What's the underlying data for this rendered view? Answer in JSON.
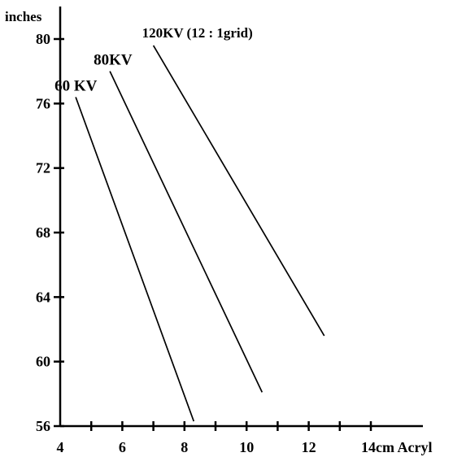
{
  "chart_data": {
    "type": "line",
    "title": "",
    "ylabel": "inches",
    "xlabel": "cm Acryl",
    "xlim": [
      4,
      14
    ],
    "ylim": [
      56,
      80
    ],
    "x_ticks": [
      4,
      6,
      8,
      10,
      12,
      14
    ],
    "x_tick_labels": [
      "4",
      "6",
      "8",
      "10",
      "12",
      "14cm Acryl"
    ],
    "x_minor_ticks": [
      5,
      7,
      9,
      11,
      13
    ],
    "y_ticks": [
      56,
      60,
      64,
      68,
      72,
      76,
      80
    ],
    "y_tick_labels": [
      "56",
      "60",
      "64",
      "68",
      "72",
      "76",
      "80"
    ],
    "grid": false,
    "series": [
      {
        "name": "60 KV",
        "x": [
          4.5,
          8.3
        ],
        "y": [
          76.4,
          56.3
        ]
      },
      {
        "name": "80KV",
        "x": [
          5.6,
          10.5
        ],
        "y": [
          78.0,
          58.1
        ]
      },
      {
        "name": "120KV (12 : 1grid)",
        "x": [
          7.0,
          12.5
        ],
        "y": [
          79.6,
          61.6
        ]
      }
    ]
  }
}
